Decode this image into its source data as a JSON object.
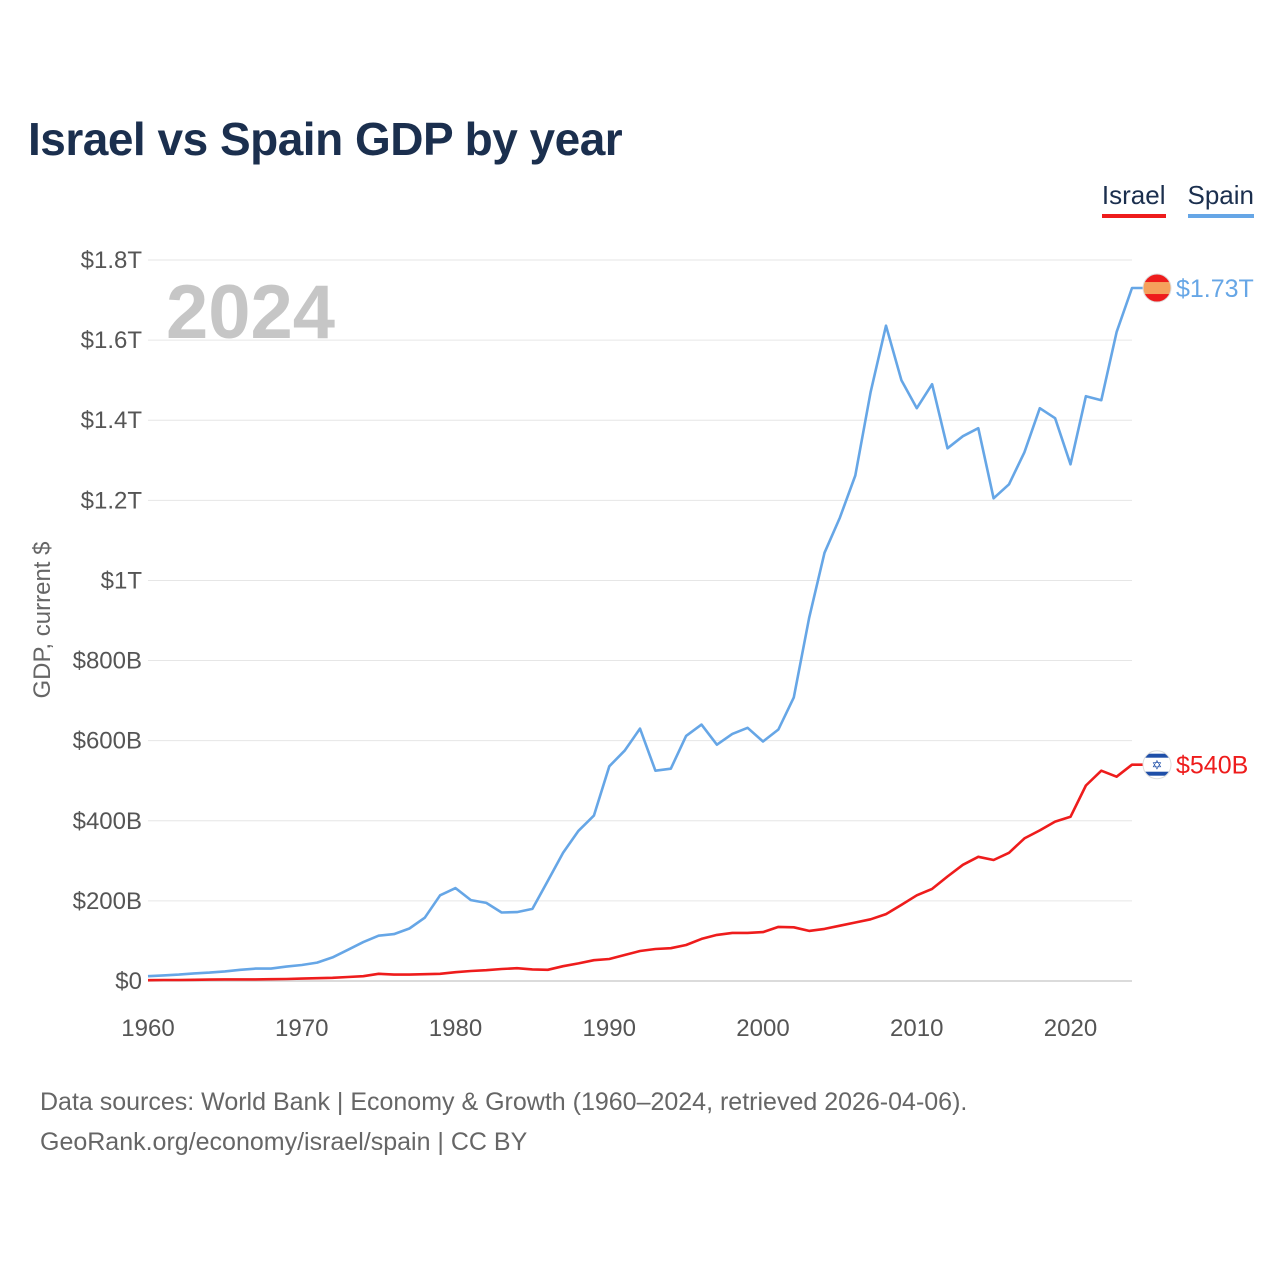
{
  "title": "Israel vs Spain GDP by year",
  "legend": [
    {
      "label": "Israel",
      "color": "#ee1c1c"
    },
    {
      "label": "Spain",
      "color": "#66a6e6"
    }
  ],
  "footer": {
    "line1": "Data sources: World Bank | Economy & Growth (1960–2024, retrieved 2026-04-06).",
    "line2": "GeoRank.org/economy/israel/spain | CC BY"
  },
  "chart_data": {
    "type": "line",
    "title": "Israel vs Spain GDP by year",
    "xlabel": "",
    "ylabel": "GDP, current $",
    "year_watermark": "2024",
    "xlim": [
      1960,
      2024
    ],
    "ylim": [
      0,
      1800
    ],
    "value_unit": "billion US$",
    "x_ticks": [
      1960,
      1970,
      1980,
      1990,
      2000,
      2010,
      2020
    ],
    "x_tick_labels": [
      "1960",
      "1970",
      "1980",
      "1990",
      "2000",
      "2010",
      "2020"
    ],
    "y_ticks": [
      0,
      200,
      400,
      600,
      800,
      1000,
      1200,
      1400,
      1600,
      1800
    ],
    "y_tick_labels": [
      "$0",
      "$200B",
      "$400B",
      "$600B",
      "$800B",
      "$1T",
      "$1.2T",
      "$1.4T",
      "$1.6T",
      "$1.8T"
    ],
    "grid": true,
    "legend_position": "top-right",
    "x": [
      1960,
      1961,
      1962,
      1963,
      1964,
      1965,
      1966,
      1967,
      1968,
      1969,
      1970,
      1971,
      1972,
      1973,
      1974,
      1975,
      1976,
      1977,
      1978,
      1979,
      1980,
      1981,
      1982,
      1983,
      1984,
      1985,
      1986,
      1987,
      1988,
      1989,
      1990,
      1991,
      1992,
      1993,
      1994,
      1995,
      1996,
      1997,
      1998,
      1999,
      2000,
      2001,
      2002,
      2003,
      2004,
      2005,
      2006,
      2007,
      2008,
      2009,
      2010,
      2011,
      2012,
      2013,
      2014,
      2015,
      2016,
      2017,
      2018,
      2019,
      2020,
      2021,
      2022,
      2023,
      2024
    ],
    "series": [
      {
        "name": "Israel",
        "color": "#ee1c1c",
        "end_label": "$540B",
        "flag_icon": "israel-flag-icon",
        "values": [
          2,
          2.5,
          2.5,
          3,
          3.5,
          4,
          4,
          4,
          4.5,
          5,
          6,
          7,
          8,
          10,
          12,
          18,
          16,
          16,
          17,
          18,
          22,
          25,
          27,
          30,
          32,
          29,
          28,
          37,
          44,
          52,
          55,
          65,
          75,
          80,
          82,
          90,
          105,
          115,
          120,
          120,
          122,
          135,
          134,
          125,
          130,
          138,
          146,
          154,
          167,
          190,
          214,
          230,
          261,
          290,
          310,
          302,
          320,
          356,
          376,
          398,
          410,
          488,
          525,
          510,
          540
        ]
      },
      {
        "name": "Spain",
        "color": "#66a6e6",
        "end_label": "$1.73T",
        "flag_icon": "spain-flag-icon",
        "values": [
          12,
          14,
          16,
          19,
          21,
          24,
          28,
          31,
          31,
          36,
          40,
          46,
          59,
          78,
          97,
          113,
          117,
          131,
          158,
          214,
          232,
          202,
          195,
          171,
          172,
          180,
          250,
          320,
          375,
          413,
          536,
          575,
          630,
          525,
          530,
          612,
          640,
          590,
          617,
          632,
          598,
          628,
          708,
          906,
          1069,
          1157,
          1262,
          1470,
          1636,
          1500,
          1430,
          1490,
          1330,
          1360,
          1380,
          1205,
          1240,
          1320,
          1430,
          1405,
          1290,
          1460,
          1450,
          1620,
          1730
        ]
      }
    ]
  }
}
